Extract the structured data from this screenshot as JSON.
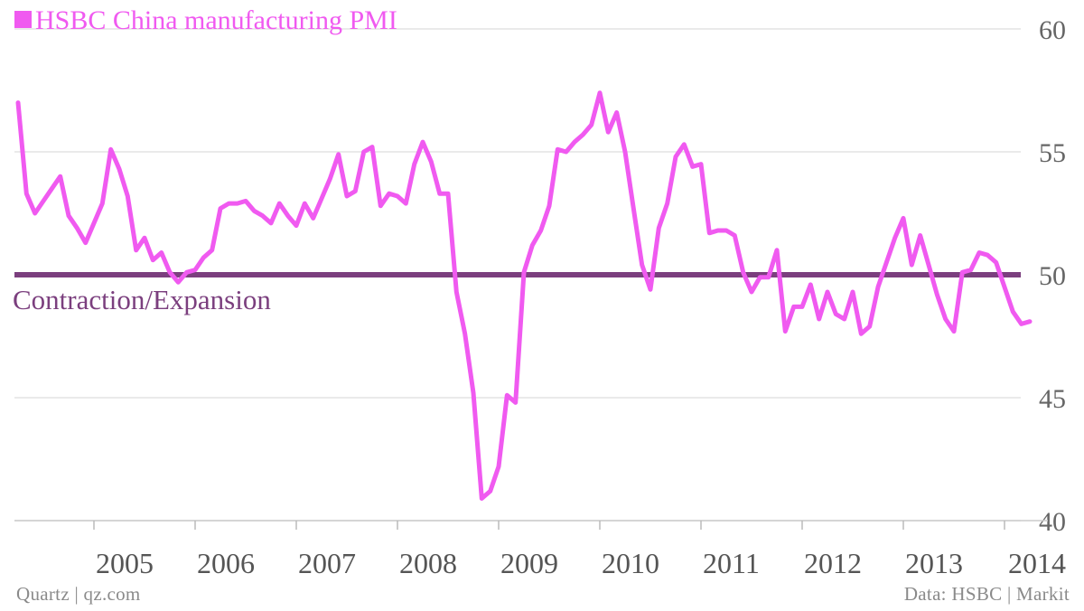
{
  "legend": {
    "label": "HSBC China manufacturing PMI",
    "color": "#f05af0"
  },
  "footer": {
    "source_left": "Quartz | qz.com",
    "source_right": "Data: HSBC | Markit"
  },
  "chart_data": {
    "type": "line",
    "title": "",
    "xlabel": "",
    "ylabel": "",
    "ylim": [
      40,
      60
    ],
    "y_ticks": [
      40,
      45,
      50,
      55,
      60
    ],
    "x_ticks": [
      "2005",
      "2006",
      "2007",
      "2008",
      "2009",
      "2010",
      "2011",
      "2012",
      "2013",
      "2014"
    ],
    "grid": true,
    "reference_line": {
      "value": 50,
      "label": "Contraction/Expansion",
      "color": "#7b3f7e"
    },
    "series": [
      {
        "name": "HSBC China manufacturing PMI",
        "color": "#f05af0",
        "x_start": "2004-04",
        "frequency": "monthly",
        "values": [
          57.0,
          53.3,
          52.5,
          53.0,
          53.5,
          54.0,
          52.4,
          51.9,
          51.3,
          52.1,
          52.9,
          55.1,
          54.3,
          53.2,
          51.0,
          51.5,
          50.6,
          50.9,
          50.1,
          49.7,
          50.1,
          50.2,
          50.7,
          51.0,
          52.7,
          52.9,
          52.9,
          53.0,
          52.6,
          52.4,
          52.1,
          52.9,
          52.4,
          52.0,
          52.9,
          52.3,
          53.1,
          53.9,
          54.9,
          53.2,
          53.4,
          55.0,
          55.2,
          52.8,
          53.3,
          53.2,
          52.9,
          54.5,
          55.4,
          54.6,
          53.3,
          53.3,
          49.3,
          47.6,
          45.2,
          40.9,
          41.2,
          42.2,
          45.1,
          44.8,
          50.1,
          51.2,
          51.8,
          52.8,
          55.1,
          55.0,
          55.4,
          55.7,
          56.1,
          57.4,
          55.8,
          56.6,
          55.0,
          52.7,
          50.4,
          49.4,
          51.9,
          52.9,
          54.8,
          55.3,
          54.4,
          54.5,
          51.7,
          51.8,
          51.8,
          51.6,
          50.1,
          49.3,
          49.9,
          49.9,
          51.0,
          47.7,
          48.7,
          48.7,
          49.6,
          48.2,
          49.3,
          48.4,
          48.2,
          49.3,
          47.6,
          47.9,
          49.5,
          50.5,
          51.5,
          52.3,
          50.4,
          51.6,
          50.4,
          49.2,
          48.2,
          47.7,
          50.1,
          50.2,
          50.9,
          50.8,
          50.5,
          49.5,
          48.5,
          48.0,
          48.1
        ]
      }
    ]
  }
}
